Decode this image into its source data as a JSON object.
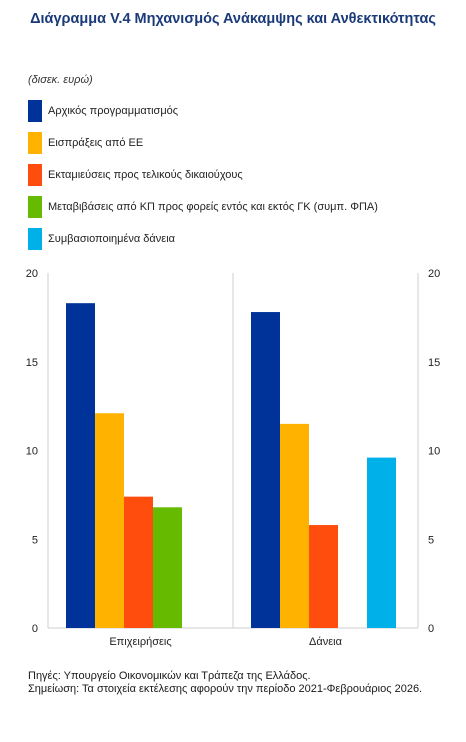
{
  "title": "Διάγραμμα V.4 Μηχανισμός Ανάκαμψης και Ανθεκτικότητας",
  "unit": "(δισεκ. ευρώ)",
  "colors": {
    "navy": "#003399",
    "amber": "#FFB300",
    "red": "#FF4D0D",
    "green": "#66BB00",
    "cyan": "#00B0E8"
  },
  "chart_data": {
    "type": "bar",
    "categories": [
      "Επιχειρήσεις",
      "Δάνεια"
    ],
    "series": [
      {
        "name": "Αρχικός προγραμματισμός",
        "color": "#003399",
        "values": [
          18.3,
          17.8
        ]
      },
      {
        "name": "Εισπράξεις από ΕΕ",
        "color": "#FFB300",
        "values": [
          12.1,
          11.5
        ]
      },
      {
        "name": "Εκταμιεύσεις προς τελικούς δικαιούχους",
        "color": "#FF4D0D",
        "values": [
          7.4,
          5.8
        ]
      },
      {
        "name": "Μεταβιβάσεις από ΚΠ προς φορείς εντός και εκτός ΓΚ (συμπ. ΦΠΑ)",
        "color": "#66BB00",
        "values": [
          6.8,
          null
        ]
      },
      {
        "name": "Συμβασιοποιημένα δάνεια",
        "color": "#00B0E8",
        "values": [
          null,
          9.6
        ]
      }
    ],
    "ylim": [
      0,
      20
    ],
    "yticks": [
      0,
      5,
      10,
      15,
      20
    ],
    "axes": "left and right",
    "grid": false,
    "legend": "top, stacked vertically"
  },
  "notes": {
    "source": "Πηγές: Υπουργείο Οικονομικών και Τράπεζα της Ελλάδος.",
    "note": "Σημείωση: Τα στοιχεία εκτέλεσης αφορούν την περίοδο 2021-Φεβρουάριος 2026."
  }
}
